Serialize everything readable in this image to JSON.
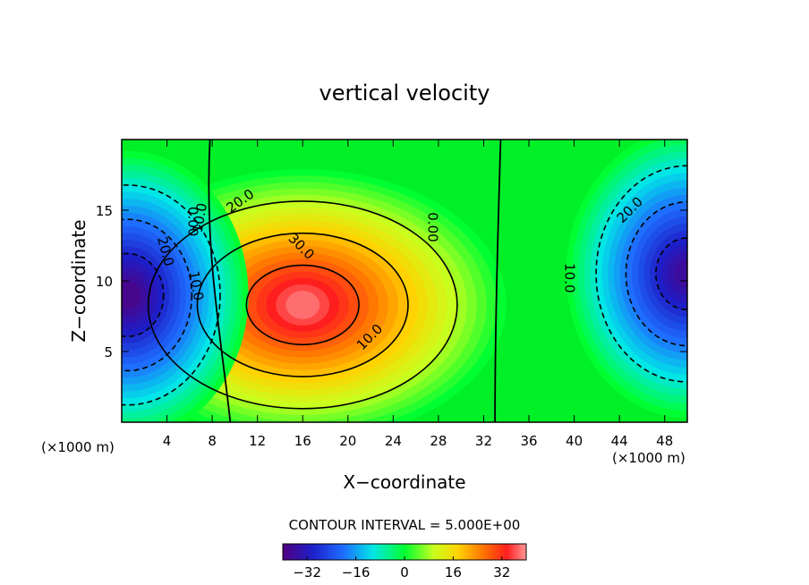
{
  "chart_data": {
    "type": "contour",
    "title": "vertical velocity",
    "xlabel": "X−coordinate",
    "ylabel": "Z−coordinate",
    "x_unit_label": "(×1000 m)",
    "y_unit_label": "(×1000 m)",
    "xlim": [
      0,
      50
    ],
    "ylim": [
      0,
      20
    ],
    "x_ticks": [
      {
        "value": 4,
        "label": "4"
      },
      {
        "value": 8,
        "label": "8"
      },
      {
        "value": 12,
        "label": "12"
      },
      {
        "value": 16,
        "label": "16"
      },
      {
        "value": 20,
        "label": "20"
      },
      {
        "value": 24,
        "label": "24"
      },
      {
        "value": 28,
        "label": "28"
      },
      {
        "value": 32,
        "label": "32"
      },
      {
        "value": 36,
        "label": "36"
      },
      {
        "value": 40,
        "label": "40"
      },
      {
        "value": 44,
        "label": "44"
      },
      {
        "value": 48,
        "label": "48"
      }
    ],
    "y_ticks": [
      {
        "value": 5,
        "label": "5"
      },
      {
        "value": 10,
        "label": "10"
      },
      {
        "value": 15,
        "label": "15"
      }
    ],
    "contour_interval_text": "CONTOUR INTERVAL = 5.000E+00",
    "contour_interval": 5,
    "value_range": [
      -40,
      40
    ],
    "field_features": [
      {
        "kind": "updraft maximum",
        "x": 16,
        "z": 8.3,
        "value": 38
      },
      {
        "kind": "downdraft minimum",
        "x": 0.5,
        "z": 9,
        "value": -38
      },
      {
        "kind": "downdraft minimum",
        "x": 50,
        "z": 10.5,
        "value": -36
      }
    ],
    "contour_labels": [
      {
        "text": "0.00",
        "x": 5.9,
        "z": 14.2,
        "angle": 90
      },
      {
        "text": "10.0",
        "x": 7.3,
        "z": 14.4,
        "angle": -80
      },
      {
        "text": "20.0",
        "x": 10.7,
        "z": 15.4,
        "angle": -35
      },
      {
        "text": "30.0",
        "x": 15.6,
        "z": 12.2,
        "angle": 45
      },
      {
        "text": "10.0",
        "x": 22.2,
        "z": 5.8,
        "angle": -45
      },
      {
        "text": "0.00",
        "x": 27.1,
        "z": 13.8,
        "angle": 90
      },
      {
        "text": "20.0",
        "x": 3.5,
        "z": 12.0,
        "angle": 75
      },
      {
        "text": "10.0",
        "x": 6.2,
        "z": 9.6,
        "angle": 80
      },
      {
        "text": "20.0",
        "x": 45.2,
        "z": 14.8,
        "angle": -45
      },
      {
        "text": "10.0",
        "x": 39.2,
        "z": 10.2,
        "angle": 90
      }
    ],
    "colorbar": {
      "ticks": [
        {
          "value": -32,
          "label": "−32"
        },
        {
          "value": -16,
          "label": "−16"
        },
        {
          "value": 0,
          "label": "0"
        },
        {
          "value": 16,
          "label": "16"
        },
        {
          "value": 32,
          "label": "32"
        }
      ],
      "range": [
        -40,
        40
      ]
    }
  }
}
